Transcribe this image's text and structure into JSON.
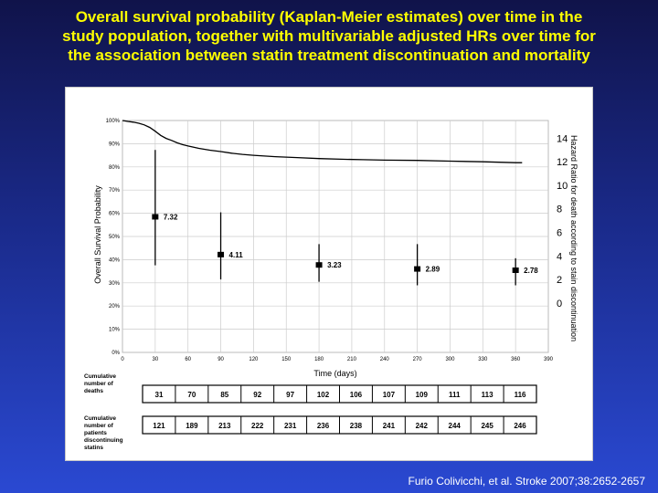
{
  "slide": {
    "title": "Overall survival probability (Kaplan-Meier estimates) over time in the\nstudy population, together with multivariable adjusted HRs over time for\nthe association between statin treatment discontinuation and mortality",
    "citation": "Furio Colivicchi, et al. Stroke 2007;38:2652-2657",
    "title_color": "#ffff00"
  },
  "chart_data": {
    "type": "line",
    "title": "",
    "xlabel": "Time (days)",
    "ylabel": "Overall Survival Probability",
    "y2label": "Hazard Ratio for death  according to stain discontinuation",
    "x_ticks": [
      0,
      30,
      60,
      90,
      120,
      150,
      180,
      210,
      240,
      270,
      300,
      330,
      360,
      390
    ],
    "xlim": [
      0,
      390
    ],
    "y_ticks": [
      "0%",
      "10%",
      "20%",
      "30%",
      "40%",
      "50%",
      "60%",
      "70%",
      "80%",
      "90%",
      "100%"
    ],
    "ylim": [
      0,
      100
    ],
    "y2_ticks": [
      0,
      2,
      4,
      6,
      8,
      10,
      12,
      14
    ],
    "y2lim": [
      -4.2,
      15.5
    ],
    "grid": true,
    "survival_curve": {
      "x": [
        0,
        5,
        10,
        15,
        20,
        25,
        30,
        35,
        40,
        45,
        50,
        55,
        60,
        70,
        80,
        90,
        100,
        110,
        120,
        140,
        160,
        180,
        200,
        220,
        240,
        270,
        300,
        330,
        345,
        360,
        366
      ],
      "y": [
        100,
        99.6,
        99.3,
        98.8,
        98.1,
        97,
        95.4,
        93.6,
        92.3,
        91.4,
        90.4,
        89.6,
        89,
        88,
        87.2,
        86.6,
        85.9,
        85.4,
        85,
        84.4,
        84,
        83.6,
        83.3,
        83.1,
        82.9,
        82.8,
        82.5,
        82.2,
        82,
        81.8,
        81.8
      ]
    },
    "hazard_ratios": [
      {
        "x": 30,
        "hr": 7.32,
        "low": 3.2,
        "high": 13.0,
        "label": "7.32"
      },
      {
        "x": 90,
        "hr": 4.11,
        "low": 2.0,
        "high": 7.7,
        "label": "4.11"
      },
      {
        "x": 180,
        "hr": 3.23,
        "low": 1.8,
        "high": 5.0,
        "label": "3.23"
      },
      {
        "x": 270,
        "hr": 2.89,
        "low": 1.5,
        "high": 5.0,
        "label": "2.89"
      },
      {
        "x": 360,
        "hr": 2.78,
        "low": 1.5,
        "high": 3.8,
        "label": "2.78"
      }
    ],
    "curve_color": "#000000",
    "grid_color": "#cccccc"
  },
  "tables": [
    {
      "label": "Cumulative\nnumber of\ndeaths",
      "values": [
        "31",
        "70",
        "85",
        "92",
        "97",
        "102",
        "106",
        "107",
        "109",
        "111",
        "113",
        "116"
      ]
    },
    {
      "label": "Cumulative\nnumber of\npatients\ndiscontinuing\nstatins",
      "values": [
        "121",
        "189",
        "213",
        "222",
        "231",
        "236",
        "238",
        "241",
        "242",
        "244",
        "245",
        "246"
      ]
    }
  ]
}
